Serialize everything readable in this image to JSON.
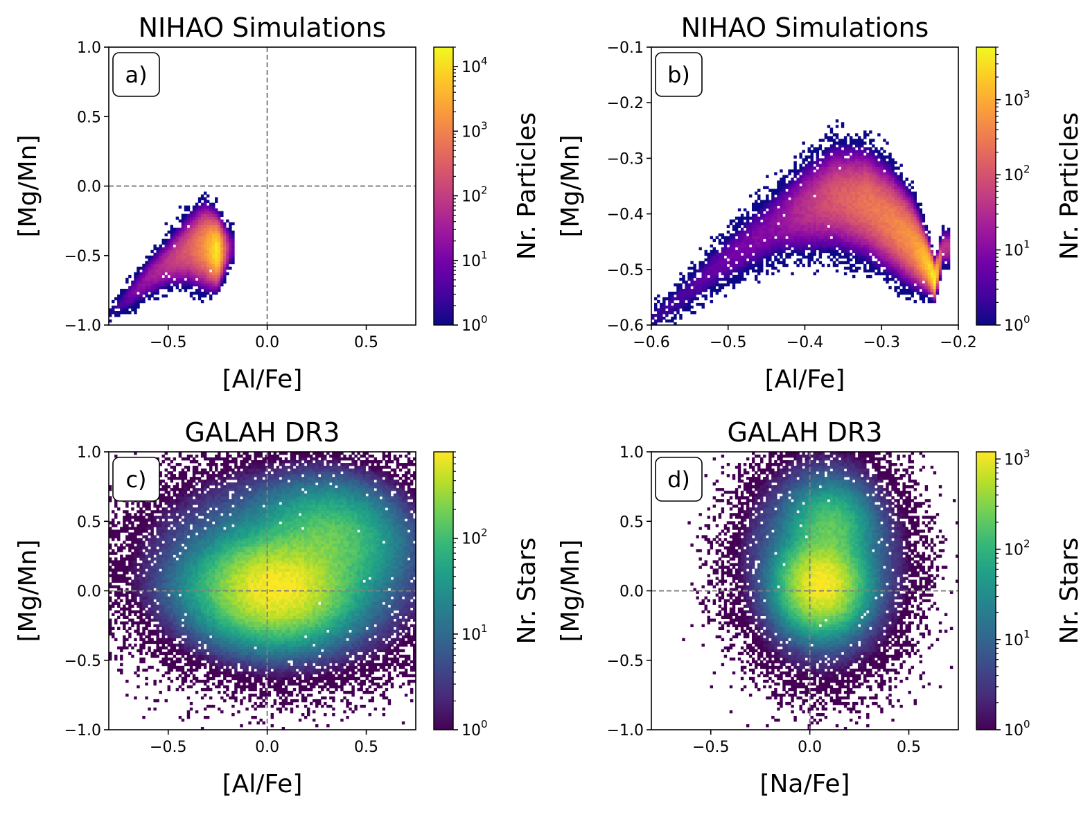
{
  "colormaps": {
    "plasma": [
      "#0d0887",
      "#46039f",
      "#7201a8",
      "#9c179e",
      "#bd3786",
      "#d8576b",
      "#ed7953",
      "#fb9f3a",
      "#fdca26",
      "#f0f921"
    ],
    "viridis": [
      "#440154",
      "#482878",
      "#3e4989",
      "#31688e",
      "#26828e",
      "#1f9e89",
      "#35b779",
      "#6ece58",
      "#b5de2b",
      "#fde725"
    ]
  },
  "chart_data": [
    {
      "type": "heatmap",
      "panel_label": "a)",
      "title": "NIHAO Simulations",
      "xlabel": "[Al/Fe]",
      "ylabel": "[Mg/Mn]",
      "xlim": [
        -0.8,
        0.75
      ],
      "ylim": [
        -1.0,
        1.0
      ],
      "xticks": [
        -0.5,
        0.0,
        0.5
      ],
      "xtick_labels": [
        "−0.5",
        "0.0",
        "0.5"
      ],
      "yticks": [
        -1.0,
        -0.5,
        0.0,
        0.5,
        1.0
      ],
      "ytick_labels": [
        "−1.0",
        "−0.5",
        "0.0",
        "0.5",
        "1.0"
      ],
      "reference_lines": {
        "x": 0.0,
        "y": 0.0
      },
      "grid": false,
      "colormap": "plasma",
      "log_color_scale": true,
      "colorbar": {
        "label": "Nr. Particles",
        "min": 1,
        "max": 20000,
        "tick_exponents": [
          0,
          1,
          2,
          3,
          4
        ]
      },
      "density_ridge": [
        {
          "x": -0.8,
          "y": -0.92,
          "w": 0.03,
          "peak": 1
        },
        {
          "x": -0.7,
          "y": -0.8,
          "w": 0.04,
          "peak": 8
        },
        {
          "x": -0.6,
          "y": -0.66,
          "w": 0.05,
          "peak": 30
        },
        {
          "x": -0.5,
          "y": -0.55,
          "w": 0.06,
          "peak": 80
        },
        {
          "x": -0.4,
          "y": -0.46,
          "w": 0.08,
          "peak": 300
        },
        {
          "x": -0.32,
          "y": -0.43,
          "w": 0.09,
          "peak": 1500
        },
        {
          "x": -0.25,
          "y": -0.47,
          "w": 0.07,
          "peak": 18000
        },
        {
          "x": -0.18,
          "y": -0.44,
          "w": 0.05,
          "peak": 10
        }
      ]
    },
    {
      "type": "heatmap",
      "panel_label": "b)",
      "title": "NIHAO Simulations",
      "xlabel": "[Al/Fe]",
      "ylabel": "[Mg/Mn]",
      "xlim": [
        -0.6,
        -0.2
      ],
      "ylim": [
        -0.6,
        -0.1
      ],
      "xticks": [
        -0.6,
        -0.5,
        -0.4,
        -0.3,
        -0.2
      ],
      "xtick_labels": [
        "−0.6",
        "−0.5",
        "−0.4",
        "−0.3",
        "−0.2"
      ],
      "yticks": [
        -0.6,
        -0.5,
        -0.4,
        -0.3,
        -0.2,
        -0.1
      ],
      "ytick_labels": [
        "−0.6",
        "−0.5",
        "−0.4",
        "−0.3",
        "−0.2",
        "−0.1"
      ],
      "grid": false,
      "colormap": "plasma",
      "log_color_scale": true,
      "colorbar": {
        "label": "Nr. Particles",
        "min": 1,
        "max": 5000,
        "tick_exponents": [
          0,
          1,
          2,
          3
        ]
      },
      "density_ridge": [
        {
          "x": -0.6,
          "y": -0.59,
          "w": 0.012,
          "peak": 2
        },
        {
          "x": -0.56,
          "y": -0.55,
          "w": 0.015,
          "peak": 3
        },
        {
          "x": -0.52,
          "y": -0.5,
          "w": 0.018,
          "peak": 5
        },
        {
          "x": -0.48,
          "y": -0.46,
          "w": 0.022,
          "peak": 8
        },
        {
          "x": -0.44,
          "y": -0.42,
          "w": 0.025,
          "peak": 12
        },
        {
          "x": -0.4,
          "y": -0.39,
          "w": 0.03,
          "peak": 40
        },
        {
          "x": -0.36,
          "y": -0.37,
          "w": 0.032,
          "peak": 120
        },
        {
          "x": -0.32,
          "y": -0.38,
          "w": 0.032,
          "peak": 250
        },
        {
          "x": -0.29,
          "y": -0.41,
          "w": 0.03,
          "peak": 350
        },
        {
          "x": -0.26,
          "y": -0.45,
          "w": 0.025,
          "peak": 600
        },
        {
          "x": -0.24,
          "y": -0.49,
          "w": 0.015,
          "peak": 2000
        },
        {
          "x": -0.23,
          "y": -0.52,
          "w": 0.01,
          "peak": 5000
        },
        {
          "x": -0.22,
          "y": -0.46,
          "w": 0.012,
          "peak": 40
        }
      ]
    },
    {
      "type": "heatmap",
      "panel_label": "c)",
      "title": "GALAH DR3",
      "xlabel": "[Al/Fe]",
      "ylabel": "[Mg/Mn]",
      "xlim": [
        -0.8,
        0.75
      ],
      "ylim": [
        -1.0,
        1.0
      ],
      "xticks": [
        -0.5,
        0.0,
        0.5
      ],
      "xtick_labels": [
        "−0.5",
        "0.0",
        "0.5"
      ],
      "yticks": [
        -1.0,
        -0.5,
        0.0,
        0.5,
        1.0
      ],
      "ytick_labels": [
        "−1.0",
        "−0.5",
        "0.0",
        "0.5",
        "1.0"
      ],
      "reference_lines": {
        "x": 0.0,
        "y": 0.0
      },
      "grid": false,
      "colormap": "viridis",
      "log_color_scale": true,
      "colorbar": {
        "label": "Nr. Stars",
        "min": 1,
        "max": 800,
        "tick_exponents": [
          0,
          1,
          2
        ]
      },
      "density_blobs": [
        {
          "x": 0.05,
          "y": 0.02,
          "sx": 0.16,
          "sy": 0.16,
          "peak": 800
        },
        {
          "x": 0.3,
          "y": 0.35,
          "sx": 0.16,
          "sy": 0.18,
          "peak": 150
        },
        {
          "x": 0.1,
          "y": 0.15,
          "sx": 0.3,
          "sy": 0.3,
          "peak": 30
        },
        {
          "x": -0.2,
          "y": 0.02,
          "sx": 0.16,
          "sy": 0.14,
          "peak": 20
        }
      ]
    },
    {
      "type": "heatmap",
      "panel_label": "d)",
      "title": "GALAH DR3",
      "xlabel": "[Na/Fe]",
      "ylabel": "[Mg/Mn]",
      "xlim": [
        -0.8,
        0.75
      ],
      "ylim": [
        -1.0,
        1.0
      ],
      "xticks": [
        -0.5,
        0.0,
        0.5
      ],
      "xtick_labels": [
        "−0.5",
        "0.0",
        "0.5"
      ],
      "yticks": [
        -1.0,
        -0.5,
        0.0,
        0.5,
        1.0
      ],
      "ytick_labels": [
        "−1.0",
        "−0.5",
        "0.0",
        "0.5",
        "1.0"
      ],
      "reference_lines": {
        "x": 0.0,
        "y": 0.0
      },
      "grid": false,
      "colormap": "viridis",
      "log_color_scale": true,
      "colorbar": {
        "label": "Nr. Stars",
        "min": 1,
        "max": 1200,
        "tick_exponents": [
          0,
          1,
          2,
          3
        ]
      },
      "density_blobs": [
        {
          "x": 0.06,
          "y": 0.05,
          "sx": 0.09,
          "sy": 0.14,
          "peak": 1200
        },
        {
          "x": 0.1,
          "y": 0.45,
          "sx": 0.09,
          "sy": 0.14,
          "peak": 180
        },
        {
          "x": 0.07,
          "y": 0.2,
          "sx": 0.17,
          "sy": 0.32,
          "peak": 30
        }
      ]
    }
  ]
}
